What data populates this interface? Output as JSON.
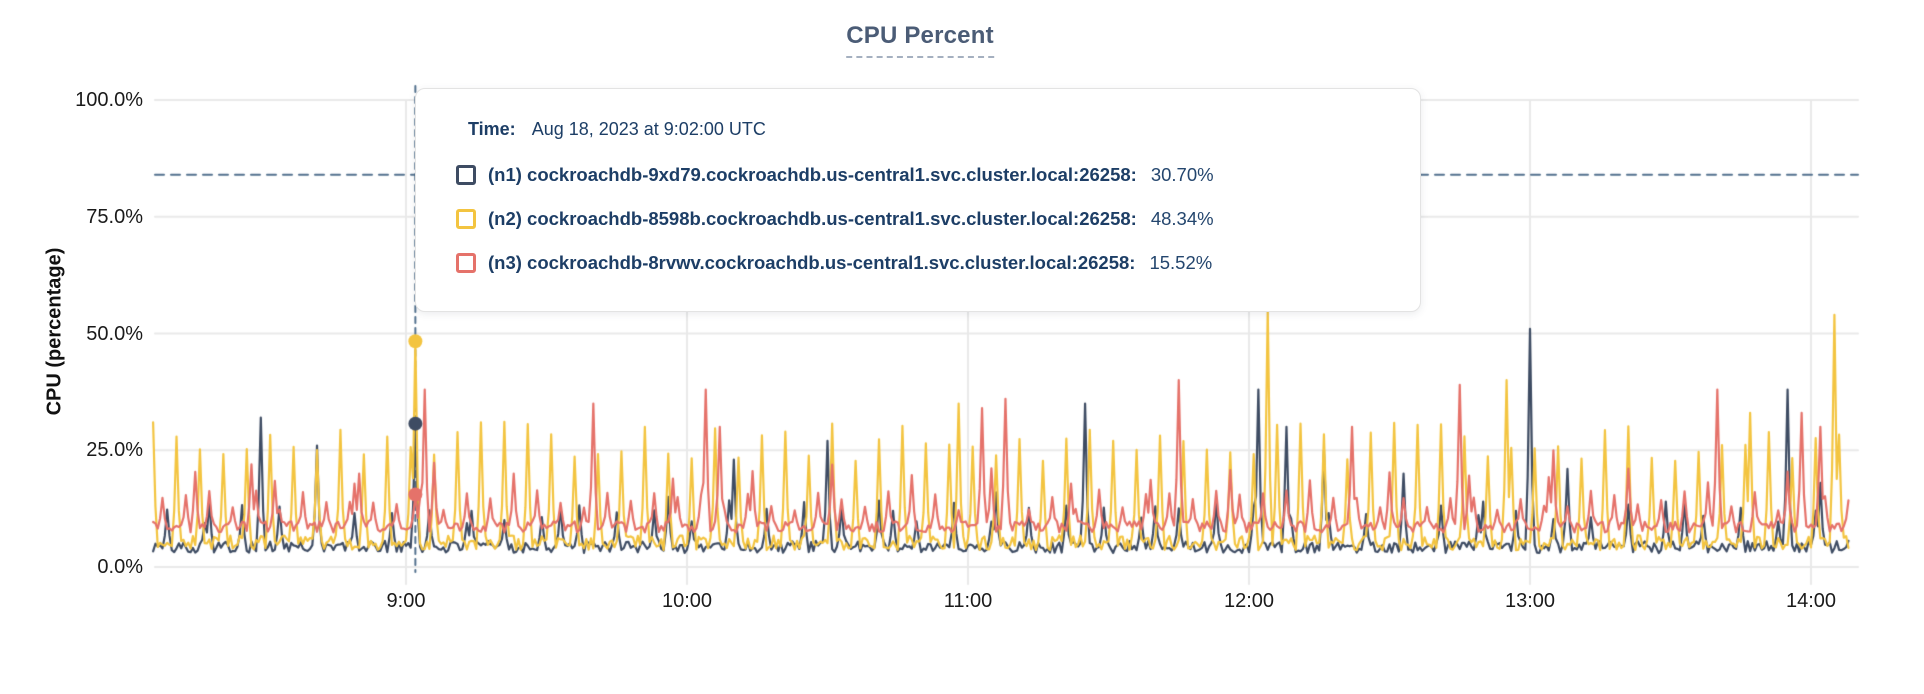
{
  "title": "CPU Percent",
  "y_axis_label": "CPU (percentage)",
  "tooltip": {
    "time_label": "Time:",
    "time_value": "Aug 18, 2023 at 9:02:00 UTC",
    "rows": [
      {
        "label": "(n1) cockroachdb-9xd79.cockroachdb.us-central1.svc.cluster.local:26258:",
        "value": "30.70%",
        "color": "#3e4c63"
      },
      {
        "label": "(n2) cockroachdb-8598b.cockroachdb.us-central1.svc.cluster.local:26258:",
        "value": "48.34%",
        "color": "#f3c440"
      },
      {
        "label": "(n3) cockroachdb-8rvwv.cockroachdb.us-central1.svc.cluster.local:26258:",
        "value": "15.52%",
        "color": "#e5726a"
      }
    ]
  },
  "chart_data": {
    "type": "line",
    "title": "CPU Percent",
    "xlabel": "",
    "ylabel": "CPU (percentage)",
    "ylim": [
      0,
      100
    ],
    "grid": true,
    "x_range": {
      "start": "8:06",
      "end": "14:08"
    },
    "yticks": [
      {
        "value": 0,
        "label": "0.0%"
      },
      {
        "value": 25,
        "label": "25.0%"
      },
      {
        "value": 50,
        "label": "50.0%"
      },
      {
        "value": 75,
        "label": "75.0%"
      },
      {
        "value": 100,
        "label": "100.0%"
      }
    ],
    "xticks": [
      {
        "time": "9:00",
        "label": "9:00"
      },
      {
        "time": "10:00",
        "label": "10:00"
      },
      {
        "time": "11:00",
        "label": "11:00"
      },
      {
        "time": "12:00",
        "label": "12:00"
      },
      {
        "time": "13:00",
        "label": "13:00"
      },
      {
        "time": "14:00",
        "label": "14:00"
      }
    ],
    "threshold_line": {
      "value": 84,
      "style": "dashed",
      "color": "#53718e"
    },
    "hover": {
      "time": "9:02",
      "guide_color": "#53718e",
      "points": [
        {
          "series": "n1",
          "value": 30.7
        },
        {
          "series": "n2",
          "value": 48.34
        },
        {
          "series": "n3",
          "value": 15.52
        }
      ]
    },
    "series": [
      {
        "id": "n1",
        "name": "cockroachdb-9xd79.cockroachdb.us-central1.svc.cluster.local:26258",
        "color": "#3e4c63",
        "seed": 101,
        "baseline": 4.3,
        "noise": 1.3,
        "periodics": [
          {
            "phase": 3,
            "interval": 8,
            "hmin": 5,
            "hmax": 10
          }
        ],
        "events": [
          [
            "8:18",
            14
          ],
          [
            "8:29",
            32
          ],
          [
            "8:41",
            26
          ],
          [
            "9:02",
            30.7
          ],
          [
            "9:14",
            12
          ],
          [
            "9:33",
            13
          ],
          [
            "9:56",
            15
          ],
          [
            "10:10",
            23
          ],
          [
            "10:30",
            27
          ],
          [
            "10:44",
            12
          ],
          [
            "11:06",
            16
          ],
          [
            "11:25",
            35
          ],
          [
            "11:40",
            13
          ],
          [
            "12:02",
            38
          ],
          [
            "12:08",
            30
          ],
          [
            "12:16",
            25
          ],
          [
            "12:33",
            20
          ],
          [
            "12:50",
            14
          ],
          [
            "13:00",
            51
          ],
          [
            "13:08",
            21
          ],
          [
            "13:33",
            14
          ],
          [
            "13:55",
            38
          ],
          [
            "14:02",
            18
          ]
        ]
      },
      {
        "id": "n2",
        "name": "cockroachdb-8598b.cockroachdb.us-central1.svc.cluster.local:26258",
        "color": "#f3c440",
        "seed": 202,
        "baseline": 5.2,
        "noise": 1.6,
        "periodics": [
          {
            "phase": 0,
            "interval": 5,
            "hmin": 17,
            "hmax": 26
          }
        ],
        "events": [
          [
            "9:02",
            48.34
          ],
          [
            "10:58",
            35
          ],
          [
            "12:04",
            55
          ],
          [
            "12:55",
            40
          ],
          [
            "13:47",
            33
          ],
          [
            "14:05",
            54
          ]
        ]
      },
      {
        "id": "n3",
        "name": "cockroachdb-8rvwv.cockroachdb.us-central1.svc.cluster.local:26258",
        "color": "#e5726a",
        "seed": 303,
        "baseline": 8.6,
        "noise": 1.2,
        "periodics": [
          {
            "phase": 2,
            "interval": 5,
            "hmin": 3.5,
            "hmax": 8
          },
          {
            "phase": 9,
            "interval": 17,
            "hmin": 9,
            "hmax": 14
          }
        ],
        "events": [
          [
            "8:27",
            22
          ],
          [
            "8:50",
            20
          ],
          [
            "9:02",
            15.52
          ],
          [
            "9:04",
            38
          ],
          [
            "9:40",
            35
          ],
          [
            "10:04",
            38
          ],
          [
            "10:07",
            30
          ],
          [
            "11:03",
            34
          ],
          [
            "11:08",
            36
          ],
          [
            "11:45",
            40
          ],
          [
            "12:22",
            30
          ],
          [
            "12:45",
            39
          ],
          [
            "13:05",
            25
          ],
          [
            "13:40",
            38
          ],
          [
            "13:58",
            33
          ],
          [
            "14:02",
            30
          ]
        ]
      }
    ]
  },
  "colors": {
    "grid": "#e9e9e9",
    "guide": "#53718e",
    "tick_text": "#1a1a1a",
    "title_text": "#4b5c76",
    "tooltip_text": "#1d3e66"
  }
}
